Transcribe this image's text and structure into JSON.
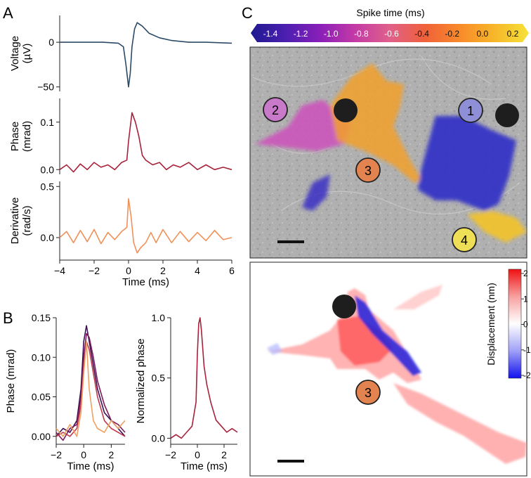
{
  "panel_labels": {
    "a": "A",
    "b": "B",
    "c": "C"
  },
  "colorbar_top": {
    "title": "Spike time (ms)",
    "ticks": [
      "-1.4",
      "-1.2",
      "-1.0",
      "-0.8",
      "-0.6",
      "-0.4",
      "-0.2",
      "0.0",
      "0.2"
    ],
    "stops": [
      "#1f1a8f",
      "#4b1fb0",
      "#8a1fb8",
      "#c43aa6",
      "#e0608a",
      "#f0603a",
      "#f88a2a",
      "#f7b62a",
      "#f5e23a"
    ]
  },
  "colorbar_side": {
    "title": "Displacement (nm)",
    "ticks": [
      "2",
      "1",
      "0",
      "-1",
      "-2"
    ],
    "stops": [
      "#ee1111",
      "#f7a0a0",
      "#ffffff",
      "#a0a0f7",
      "#1111ee"
    ]
  },
  "cell_markers": {
    "c1": "1",
    "c2": "2",
    "c3": "3",
    "c4": "4",
    "c3_lower": "3"
  },
  "colors": {
    "voltage": "#2b4a66",
    "phase": "#a8213a",
    "derivative": "#f0915a",
    "marker_1": "#8e8fd6",
    "marker_2": "#c879c8",
    "marker_3": "#e3834f",
    "marker_4": "#eedf57"
  },
  "chart_data": [
    {
      "id": "A-voltage",
      "type": "line",
      "ylabel": "Voltage (µV)",
      "ylabel_lines": [
        "Voltage",
        "(µV)"
      ],
      "xlim": [
        -4,
        6
      ],
      "ylim": [
        -55,
        30
      ],
      "yticks": [
        "0",
        "−50"
      ],
      "series": [
        {
          "x": [
            -4,
            -3.5,
            -3,
            -2.5,
            -2,
            -1.5,
            -1,
            -0.6,
            -0.3,
            -0.15,
            0,
            0.1,
            0.2,
            0.35,
            0.5,
            0.8,
            1.2,
            1.8,
            2.5,
            3.5,
            4.5,
            6
          ],
          "values": [
            0,
            0,
            0,
            0,
            0,
            0,
            -0.5,
            -1,
            -5,
            -25,
            -50,
            -35,
            -5,
            15,
            22,
            18,
            10,
            5,
            2,
            0,
            0,
            -1
          ]
        }
      ]
    },
    {
      "id": "A-phase",
      "type": "line",
      "ylabel": "Phase (mrad)",
      "ylabel_lines": [
        "Phase",
        "(mrad)"
      ],
      "xlim": [
        -4,
        6
      ],
      "ylim": [
        -0.01,
        0.15
      ],
      "yticks": [
        "0.1",
        "0.0"
      ],
      "series": [
        {
          "x": [
            -4,
            -3.6,
            -3.2,
            -2.8,
            -2.4,
            -2,
            -1.6,
            -1.2,
            -0.8,
            -0.4,
            -0.1,
            0,
            0.2,
            0.4,
            0.6,
            0.8,
            1.0,
            1.4,
            1.8,
            2.2,
            2.6,
            3,
            3.5,
            4,
            4.5,
            5,
            5.5,
            6
          ],
          "values": [
            0.0,
            0.01,
            -0.005,
            0.012,
            0.0,
            0.015,
            0.005,
            0.01,
            0.0,
            0.015,
            0.02,
            0.06,
            0.12,
            0.1,
            0.07,
            0.03,
            0.02,
            0.01,
            0.015,
            0.0,
            0.01,
            0.005,
            0.015,
            0.0,
            0.01,
            0.0,
            0.005,
            0.0
          ]
        }
      ]
    },
    {
      "id": "A-derivative",
      "type": "line",
      "ylabel": "Derivative (rad/s)",
      "ylabel_lines": [
        "Derivative",
        "(rad/s)"
      ],
      "xlabel": "Time (ms)",
      "xlim": [
        -4,
        6
      ],
      "ylim": [
        -0.22,
        0.55
      ],
      "yticks": [
        "0.5",
        "0.0"
      ],
      "xticks": [
        "−4",
        "−2",
        "0",
        "2",
        "4",
        "6"
      ],
      "series": [
        {
          "x": [
            -4,
            -3.6,
            -3.2,
            -2.8,
            -2.4,
            -2,
            -1.6,
            -1.2,
            -0.8,
            -0.4,
            -0.1,
            0,
            0.15,
            0.3,
            0.5,
            0.7,
            1,
            1.3,
            1.6,
            2,
            2.5,
            3,
            3.5,
            4,
            4.5,
            5,
            5.5,
            6
          ],
          "values": [
            0.0,
            0.06,
            -0.05,
            0.07,
            -0.04,
            0.08,
            -0.06,
            0.05,
            -0.02,
            0.06,
            0.1,
            0.38,
            0.2,
            -0.05,
            -0.15,
            -0.1,
            -0.05,
            0.05,
            -0.05,
            0.08,
            -0.05,
            0.06,
            -0.04,
            0.05,
            -0.03,
            0.07,
            -0.02,
            0.0
          ]
        }
      ]
    },
    {
      "id": "B-phase",
      "type": "line",
      "ylabel": "Phase (mrad)",
      "xlabel": "Time (ms)",
      "xlim": [
        -2,
        3
      ],
      "ylim": [
        -0.01,
        0.15
      ],
      "yticks": [
        "0.15",
        "0.10",
        "0.05",
        "0.00"
      ],
      "xticks": [
        "−2",
        "0",
        "2"
      ],
      "series": [
        {
          "color": "#3d0f55",
          "x": [
            -2,
            -1.5,
            -1,
            -0.5,
            -0.2,
            0,
            0.2,
            0.4,
            0.7,
            1,
            1.5,
            2,
            2.5,
            3
          ],
          "values": [
            0.0,
            0.01,
            0.005,
            0.02,
            0.06,
            0.12,
            0.14,
            0.12,
            0.09,
            0.06,
            0.03,
            0.02,
            0.01,
            0.0
          ]
        },
        {
          "color": "#7a1a5a",
          "x": [
            -2,
            -1.5,
            -1,
            -0.5,
            -0.2,
            0,
            0.2,
            0.4,
            0.7,
            1,
            1.5,
            2,
            2.5,
            3
          ],
          "values": [
            0.005,
            -0.005,
            0.01,
            0.015,
            0.05,
            0.1,
            0.13,
            0.125,
            0.1,
            0.07,
            0.04,
            0.02,
            0.015,
            0.005
          ]
        },
        {
          "color": "#c0394d",
          "x": [
            -2,
            -1.5,
            -1,
            -0.5,
            -0.2,
            0,
            0.2,
            0.4,
            0.7,
            1,
            1.5,
            2,
            2.5,
            3
          ],
          "values": [
            0.0,
            0.005,
            0.0,
            0.01,
            0.04,
            0.09,
            0.12,
            0.11,
            0.08,
            0.05,
            0.02,
            0.01,
            0.005,
            0.0
          ]
        },
        {
          "color": "#f0a060",
          "x": [
            -2,
            -1.5,
            -1,
            -0.5,
            -0.2,
            0,
            0.2,
            0.4,
            0.7,
            1,
            1.5,
            2,
            2.5,
            3
          ],
          "values": [
            0.01,
            0.0,
            0.015,
            0.0,
            0.03,
            0.08,
            0.12,
            0.06,
            0.02,
            0.01,
            0.005,
            0.02,
            0.01,
            0.02
          ]
        }
      ]
    },
    {
      "id": "B-normalized",
      "type": "line",
      "ylabel": "Normalized phase",
      "xlabel": "Time (ms)",
      "xlim": [
        -2,
        3
      ],
      "ylim": [
        -0.05,
        1.0
      ],
      "yticks": [
        "1.0",
        "0.5",
        "0.0"
      ],
      "xticks": [
        "−2",
        "0",
        "2"
      ],
      "series": [
        {
          "color": "#a8213a",
          "x": [
            -2,
            -1.6,
            -1.2,
            -0.8,
            -0.4,
            -0.1,
            0,
            0.1,
            0.2,
            0.3,
            0.5,
            0.7,
            1,
            1.4,
            1.8,
            2.2,
            2.6,
            3
          ],
          "values": [
            0.0,
            0.03,
            0.0,
            0.05,
            0.1,
            0.3,
            0.7,
            0.95,
            1.0,
            0.9,
            0.6,
            0.45,
            0.3,
            0.15,
            0.1,
            0.05,
            0.08,
            0.05
          ]
        }
      ]
    }
  ]
}
